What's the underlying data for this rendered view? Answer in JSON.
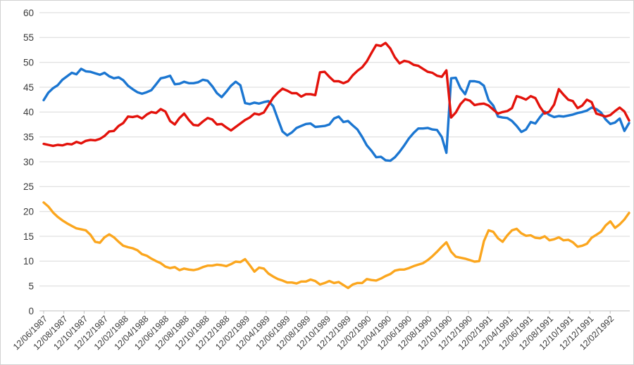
{
  "chart_data": {
    "type": "line",
    "title": "",
    "legend": "none",
    "grid": "horizontal",
    "ylim": [
      0,
      60
    ],
    "y_ticks": [
      0,
      5,
      10,
      15,
      20,
      25,
      30,
      35,
      40,
      45,
      50,
      55,
      60
    ],
    "x_tick_labels": [
      "12/06/1987",
      "12/08/1987",
      "12/10/1987",
      "12/12/1987",
      "12/02/1988",
      "12/04/1988",
      "12/06/1988",
      "12/08/1988",
      "12/10/1988",
      "12/12/1988",
      "12/02/1989",
      "12/04/1989",
      "12/06/1989",
      "12/08/1989",
      "12/10/1989",
      "12/12/1989",
      "12/02/1990",
      "12/04/1990",
      "12/06/1990",
      "12/08/1990",
      "12/10/1990",
      "12/12/1990",
      "12/02/1991",
      "12/04/1991",
      "12/06/1991",
      "12/08/1991",
      "12/10/1991",
      "12/12/1991",
      "12/02/1992"
    ],
    "colors": {
      "blue": "#1b76d1",
      "red": "#e3120b",
      "orange": "#fba61e",
      "gridline": "#d9d9d9",
      "axis": "#bfbfbf",
      "label": "#3a3a3a"
    },
    "series": [
      {
        "name": "blue-series",
        "color": "#1b76d1",
        "values": [
          42.4,
          43.9,
          44.8,
          45.4,
          46.5,
          47.2,
          47.9,
          47.6,
          48.7,
          48.2,
          48.1,
          47.8,
          47.5,
          47.9,
          47.2,
          46.8,
          47.0,
          46.4,
          45.3,
          44.6,
          44.0,
          43.7,
          44.0,
          44.4,
          45.6,
          46.8,
          47.0,
          47.3,
          45.6,
          45.7,
          46.1,
          45.8,
          45.8,
          46.0,
          46.5,
          46.3,
          45.2,
          43.8,
          43.0,
          44.1,
          45.3,
          46.1,
          45.4,
          41.8,
          41.6,
          41.9,
          41.7,
          42.0,
          42.2,
          41.2,
          38.6,
          36.1,
          35.3,
          35.9,
          36.8,
          37.2,
          37.6,
          37.7,
          37.0,
          37.1,
          37.2,
          37.5,
          38.7,
          39.1,
          38.0,
          38.2,
          37.3,
          36.5,
          35.0,
          33.3,
          32.2,
          30.9,
          31.0,
          30.3,
          30.2,
          30.9,
          32.0,
          33.3,
          34.7,
          35.8,
          36.7,
          36.7,
          36.8,
          36.5,
          36.4,
          35.0,
          31.8,
          46.8,
          46.9,
          44.8,
          43.6,
          46.2,
          46.2,
          46.0,
          45.3,
          42.4,
          41.3,
          39.1,
          38.9,
          38.8,
          38.2,
          37.2,
          36.0,
          36.5,
          38.0,
          37.7,
          39.0,
          40.1,
          39.4,
          39.0,
          39.2,
          39.1,
          39.3,
          39.5,
          39.8,
          40.0,
          40.3,
          40.9,
          40.6,
          39.9,
          38.5,
          37.6,
          37.9,
          38.7,
          36.2,
          37.8
        ]
      },
      {
        "name": "red-series",
        "color": "#e3120b",
        "values": [
          33.6,
          33.4,
          33.2,
          33.4,
          33.3,
          33.6,
          33.5,
          34.0,
          33.7,
          34.2,
          34.4,
          34.3,
          34.6,
          35.2,
          36.1,
          36.2,
          37.2,
          37.8,
          39.1,
          39.0,
          39.2,
          38.7,
          39.5,
          40.0,
          39.8,
          40.6,
          40.1,
          38.2,
          37.5,
          38.8,
          39.7,
          38.4,
          37.4,
          37.3,
          38.1,
          38.8,
          38.5,
          37.5,
          37.6,
          36.9,
          36.3,
          37.0,
          37.7,
          38.4,
          38.9,
          39.7,
          39.5,
          39.9,
          41.4,
          42.9,
          43.9,
          44.7,
          44.3,
          43.8,
          43.8,
          43.1,
          43.6,
          43.6,
          43.4,
          48.0,
          48.1,
          47.1,
          46.2,
          46.2,
          45.8,
          46.2,
          47.4,
          48.3,
          49.0,
          50.2,
          51.9,
          53.5,
          53.3,
          53.9,
          52.8,
          51.0,
          49.8,
          50.3,
          50.1,
          49.5,
          49.3,
          48.7,
          48.1,
          47.9,
          47.3,
          47.1,
          48.4,
          38.9,
          39.9,
          41.6,
          42.6,
          42.3,
          41.4,
          41.6,
          41.7,
          41.3,
          40.5,
          39.7,
          40.0,
          40.2,
          40.8,
          43.2,
          42.9,
          42.5,
          43.2,
          42.8,
          41.0,
          39.7,
          40.1,
          41.5,
          44.6,
          43.5,
          42.5,
          42.2,
          40.8,
          41.3,
          42.5,
          42.0,
          39.7,
          39.4,
          39.1,
          39.4,
          40.2,
          40.9,
          40.1,
          38.3
        ]
      },
      {
        "name": "orange-series",
        "color": "#fba61e",
        "values": [
          21.8,
          21.0,
          19.8,
          18.9,
          18.2,
          17.6,
          17.1,
          16.6,
          16.4,
          16.2,
          15.3,
          13.9,
          13.7,
          14.8,
          15.4,
          14.8,
          13.9,
          13.1,
          12.8,
          12.6,
          12.2,
          11.4,
          11.1,
          10.5,
          10.0,
          9.6,
          8.9,
          8.6,
          8.8,
          8.2,
          8.5,
          8.3,
          8.2,
          8.4,
          8.8,
          9.1,
          9.1,
          9.3,
          9.2,
          9.0,
          9.4,
          9.9,
          9.8,
          10.4,
          9.2,
          7.9,
          8.7,
          8.5,
          7.5,
          6.9,
          6.4,
          6.1,
          5.7,
          5.7,
          5.5,
          5.9,
          5.9,
          6.3,
          6.0,
          5.3,
          5.6,
          6.0,
          5.6,
          5.8,
          5.2,
          4.6,
          5.3,
          5.6,
          5.6,
          6.4,
          6.2,
          6.1,
          6.5,
          7.0,
          7.4,
          8.1,
          8.3,
          8.3,
          8.6,
          9.0,
          9.3,
          9.6,
          10.2,
          11.0,
          11.9,
          12.9,
          13.8,
          11.9,
          10.9,
          10.7,
          10.5,
          10.2,
          9.9,
          10.0,
          14.0,
          16.2,
          15.9,
          14.6,
          13.9,
          15.2,
          16.2,
          16.5,
          15.6,
          15.1,
          15.2,
          14.7,
          14.6,
          15.0,
          14.2,
          14.4,
          14.8,
          14.2,
          14.3,
          13.8,
          12.9,
          13.1,
          13.5,
          14.7,
          15.3,
          15.9,
          17.2,
          18.0,
          16.7,
          17.4,
          18.4,
          19.7
        ]
      }
    ]
  }
}
